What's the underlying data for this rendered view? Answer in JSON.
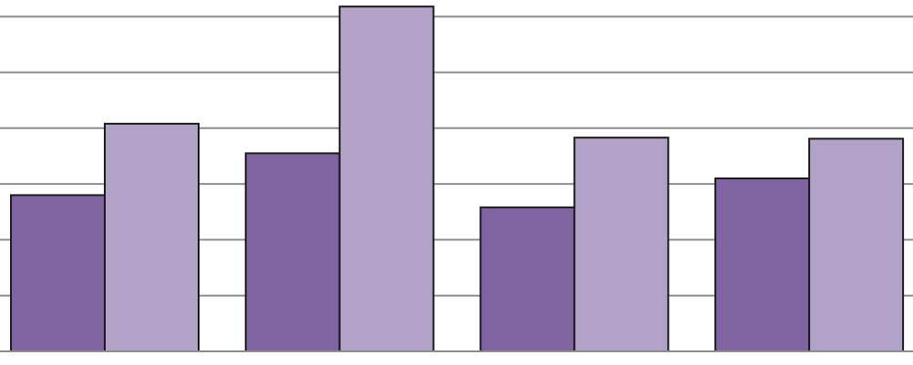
{
  "chart_data": {
    "type": "bar",
    "title": "",
    "xlabel": "",
    "ylabel": "",
    "categories": [
      "",
      "",
      "",
      ""
    ],
    "series": [
      {
        "values": [
          2.8,
          3.55,
          2.58,
          3.1
        ],
        "color": "#8064a2"
      },
      {
        "values": [
          4.08,
          6.18,
          3.83,
          3.81
        ],
        "color": "#b2a2c7"
      }
    ],
    "ylim": [
      0,
      6.2
    ],
    "gridlines": [
      1,
      2,
      3,
      4,
      5,
      6
    ],
    "grid": true,
    "legend": "none",
    "axis_color": "#8c8c8c",
    "bar_outline_color": "#1a1a1a"
  }
}
